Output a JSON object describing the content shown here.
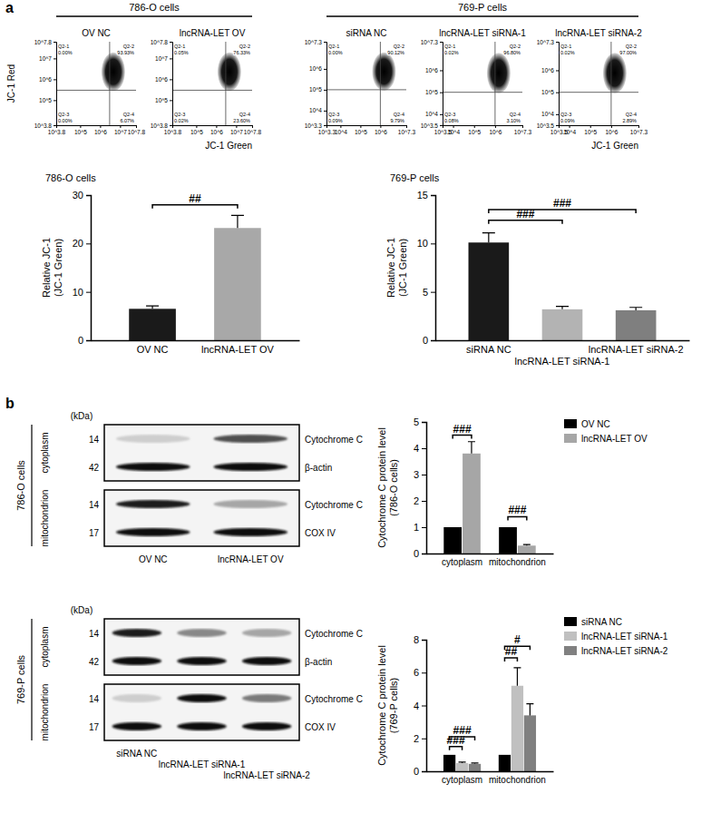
{
  "panel_labels": [
    "a",
    "b"
  ],
  "group_headers": [
    "786-O cells",
    "769-P cells"
  ],
  "chart_data": [
    {
      "type": "scatter",
      "title": "OV NC",
      "y_label": "JC-1 Red",
      "log": true,
      "xlim": [
        6309.573,
        63095734.45
      ],
      "xticks": [
        {
          "value": 6309.573,
          "label": "10^3.8"
        },
        {
          "value": 100000,
          "label": "10^5"
        },
        {
          "value": 1000000,
          "label": "10^6"
        },
        {
          "value": 10000000,
          "label": "10^7"
        },
        {
          "value": 63095734.45,
          "label": "10^7.8"
        }
      ],
      "ylim": [
        6309.573,
        63095734.45
      ],
      "yticks": [
        {
          "value": 6309.573,
          "label": "10^3.8"
        },
        {
          "value": 100000,
          "label": "10^5"
        },
        {
          "value": 1000000,
          "label": "10^6"
        },
        {
          "value": 10000000,
          "label": "10^7"
        },
        {
          "value": 63095734.45,
          "label": "10^7.8"
        }
      ],
      "gate_x": 3000000,
      "gate_y": 300000,
      "quadrants": [
        {
          "name": "Q2-1",
          "value": 0.0,
          "label": "0.00%"
        },
        {
          "name": "Q2-2",
          "value": 93.93,
          "label": "93.93%"
        },
        {
          "name": "Q2-3",
          "value": 0.0,
          "label": "0.00%"
        },
        {
          "name": "Q2-4",
          "value": 6.07,
          "label": "6.07%"
        }
      ]
    },
    {
      "type": "scatter",
      "title": "lncRNA-LET OV",
      "x_label": "JC-1 Green",
      "log": true,
      "xlim": [
        6309.573,
        63095734.45
      ],
      "xticks": [
        {
          "value": 6309.573,
          "label": "10^3.8"
        },
        {
          "value": 100000,
          "label": "10^5"
        },
        {
          "value": 1000000,
          "label": "10^6"
        },
        {
          "value": 10000000,
          "label": "10^7"
        },
        {
          "value": 63095734.45,
          "label": "10^7.8"
        }
      ],
      "ylim": [
        6309.573,
        63095734.45
      ],
      "yticks": [
        {
          "value": 6309.573,
          "label": "10^3.8"
        },
        {
          "value": 100000,
          "label": "10^5"
        },
        {
          "value": 1000000,
          "label": "10^6"
        },
        {
          "value": 10000000,
          "label": "10^7"
        },
        {
          "value": 63095734.45,
          "label": "10^7.8"
        }
      ],
      "gate_x": 3000000,
      "gate_y": 300000,
      "quadrants": [
        {
          "name": "Q2-1",
          "value": 0.05,
          "label": "0.05%"
        },
        {
          "name": "Q2-2",
          "value": 76.33,
          "label": "76.33%"
        },
        {
          "name": "Q2-3",
          "value": 0.02,
          "label": "0.02%"
        },
        {
          "name": "Q2-4",
          "value": 23.6,
          "label": "23.60%"
        }
      ]
    },
    {
      "type": "scatter",
      "title": "siRNA NC",
      "log": true,
      "xlim": [
        1995.262,
        19952623.15
      ],
      "xticks": [
        {
          "value": 1995.262,
          "label": "10^3.3"
        },
        {
          "value": 10000,
          "label": "10^4"
        },
        {
          "value": 100000,
          "label": "10^5"
        },
        {
          "value": 1000000,
          "label": "10^6"
        },
        {
          "value": 19952623.15,
          "label": "10^7.3"
        }
      ],
      "ylim": [
        1995.262,
        19952623.15
      ],
      "yticks": [
        {
          "value": 1995.262,
          "label": "10^3.3"
        },
        {
          "value": 10000,
          "label": "10^4"
        },
        {
          "value": 100000,
          "label": "10^5"
        },
        {
          "value": 1000000,
          "label": "10^6"
        },
        {
          "value": 19952623.15,
          "label": "10^7.3"
        }
      ],
      "gate_x": 1000000,
      "gate_y": 100000,
      "quadrants": [
        {
          "name": "Q2-1",
          "value": 0.0,
          "label": "0.00%"
        },
        {
          "name": "Q2-2",
          "value": 90.12,
          "label": "90.12%"
        },
        {
          "name": "Q2-3",
          "value": 0.09,
          "label": "0.09%"
        },
        {
          "name": "Q2-4",
          "value": 9.79,
          "label": "9.79%"
        }
      ]
    },
    {
      "type": "scatter",
      "title": "lncRNA-LET siRNA-1",
      "log": true,
      "xlim": [
        3162.278,
        19952623.15
      ],
      "xticks": [
        {
          "value": 3162.278,
          "label": "10^3.5"
        },
        {
          "value": 10000,
          "label": "10^4"
        },
        {
          "value": 100000,
          "label": "10^5"
        },
        {
          "value": 1000000,
          "label": "10^6"
        },
        {
          "value": 19952623.15,
          "label": "10^7.3"
        }
      ],
      "ylim": [
        3162.278,
        19952623.15
      ],
      "yticks": [
        {
          "value": 3162.278,
          "label": "10^3.5"
        },
        {
          "value": 10000,
          "label": "10^4"
        },
        {
          "value": 100000,
          "label": "10^5"
        },
        {
          "value": 1000000,
          "label": "10^6"
        },
        {
          "value": 19952623.15,
          "label": "10^7.3"
        }
      ],
      "gate_x": 1000000,
      "gate_y": 100000,
      "quadrants": [
        {
          "name": "Q2-1",
          "value": 0.02,
          "label": "0.02%"
        },
        {
          "name": "Q2-2",
          "value": 96.8,
          "label": "96.80%"
        },
        {
          "name": "Q2-3",
          "value": 0.08,
          "label": "0.08%"
        },
        {
          "name": "Q2-4",
          "value": 3.1,
          "label": "3.10%"
        }
      ]
    },
    {
      "type": "scatter",
      "title": "lncRNA-LET siRNA-2",
      "x_label": "JC-1 Green",
      "log": true,
      "xlim": [
        3162.278,
        19952623.15
      ],
      "xticks": [
        {
          "value": 3162.278,
          "label": "10^3.5"
        },
        {
          "value": 10000,
          "label": "10^4"
        },
        {
          "value": 100000,
          "label": "10^5"
        },
        {
          "value": 1000000,
          "label": "10^6"
        },
        {
          "value": 19952623.15,
          "label": "10^7.3"
        }
      ],
      "ylim": [
        3162.278,
        19952623.15
      ],
      "yticks": [
        {
          "value": 3162.278,
          "label": "10^3.5"
        },
        {
          "value": 10000,
          "label": "10^4"
        },
        {
          "value": 100000,
          "label": "10^5"
        },
        {
          "value": 1000000,
          "label": "10^6"
        },
        {
          "value": 19952623.15,
          "label": "10^7.3"
        }
      ],
      "gate_x": 1000000,
      "gate_y": 100000,
      "quadrants": [
        {
          "name": "Q2-1",
          "value": 0.02,
          "label": "0.02%"
        },
        {
          "name": "Q2-2",
          "value": 97.0,
          "label": "97.00%"
        },
        {
          "name": "Q2-3",
          "value": 0.09,
          "label": "0.09%"
        },
        {
          "name": "Q2-4",
          "value": 2.89,
          "label": "2.89%"
        }
      ]
    },
    {
      "type": "bar",
      "title": "786-O cells",
      "y_label": [
        "Relative JC-1",
        "(JC-1 Green)"
      ],
      "categories": [
        "OV NC",
        "lncRNA-LET OV"
      ],
      "values": [
        6.5,
        23.2
      ],
      "errors": [
        0.6,
        2.6
      ],
      "colors": [
        "#1a1a1a",
        "#a8a8a8"
      ],
      "ylim": [
        0,
        30
      ],
      "yticks": [
        0,
        10,
        20,
        30
      ],
      "annotations": [
        {
          "text": "##",
          "from": 0,
          "to": 1,
          "y": 28
        }
      ]
    },
    {
      "type": "bar",
      "title": "769-P cells",
      "y_label": [
        "Relative JC-1",
        "(JC-1 Green)"
      ],
      "categories": [
        "siRNA NC",
        "lncRNA-LET siRNA-1",
        "lncRNA-LET siRNA-2"
      ],
      "values": [
        10.1,
        3.2,
        3.1
      ],
      "errors": [
        1.0,
        0.3,
        0.3
      ],
      "colors": [
        "#1a1a1a",
        "#b3b3b3",
        "#7f7f7f"
      ],
      "ylim": [
        0,
        15
      ],
      "yticks": [
        0,
        5,
        10,
        15
      ],
      "annotations": [
        {
          "text": "###",
          "from": 0,
          "to": 1,
          "y": 12.4
        },
        {
          "text": "###",
          "from": 0,
          "to": 2,
          "y": 13.5
        }
      ]
    },
    {
      "type": "blot",
      "title": "786-O cells",
      "unit_label": "(kDa)",
      "lanes": [
        "OV NC",
        "lncRNA-LET OV"
      ],
      "fractions": [
        {
          "label": "cytoplasm",
          "rows": [
            {
              "protein": "Cytochrome C",
              "kda": 14,
              "intensity": [
                0.3,
                0.75
              ]
            },
            {
              "protein": "β-actin",
              "kda": 42,
              "intensity": [
                0.95,
                0.95
              ]
            }
          ]
        },
        {
          "label": "mitochondrion",
          "rows": [
            {
              "protein": "Cytochrome C",
              "kda": 14,
              "intensity": [
                0.9,
                0.45
              ]
            },
            {
              "protein": "COX IV",
              "kda": 17,
              "intensity": [
                0.95,
                0.95
              ]
            }
          ]
        }
      ]
    },
    {
      "type": "bar",
      "y_label": [
        "Cytochrome C protein level",
        "(786-O cells)"
      ],
      "categories": [
        "cytoplasm",
        "mitochondrion"
      ],
      "series": [
        {
          "name": "OV NC",
          "color": "#000000",
          "values": [
            1,
            1
          ]
        },
        {
          "name": "lncRNA-LET OV",
          "color": "#a6a6a6",
          "values": [
            3.8,
            0.3
          ],
          "errors": [
            0.45,
            0.04
          ]
        }
      ],
      "ylim": [
        0,
        5
      ],
      "yticks": [
        0,
        1,
        2,
        3,
        4,
        5
      ],
      "legend": "top-right",
      "annotations": [
        {
          "text": "###",
          "category": 0,
          "from": 0,
          "to": 1,
          "y": 4.5
        },
        {
          "text": "###",
          "category": 1,
          "from": 0,
          "to": 1,
          "y": 1.4
        }
      ]
    },
    {
      "type": "blot",
      "title": "769-P cells",
      "unit_label": "(kDa)",
      "lanes": [
        "siRNA NC",
        "lncRNA-LET siRNA-1",
        "lncRNA-LET siRNA-2"
      ],
      "fractions": [
        {
          "label": "cytoplasm",
          "rows": [
            {
              "protein": "Cytochrome C",
              "kda": 14,
              "intensity": [
                0.9,
                0.55,
                0.45
              ]
            },
            {
              "protein": "β-actin",
              "kda": 42,
              "intensity": [
                0.95,
                0.95,
                0.95
              ]
            }
          ]
        },
        {
          "label": "mitochondrion",
          "rows": [
            {
              "protein": "Cytochrome C",
              "kda": 14,
              "intensity": [
                0.3,
                0.95,
                0.6
              ]
            },
            {
              "protein": "COX IV",
              "kda": 17,
              "intensity": [
                0.95,
                0.95,
                0.95
              ]
            }
          ]
        }
      ]
    },
    {
      "type": "bar",
      "y_label": [
        "Cytochrome C protein level",
        "(769-P cells)"
      ],
      "categories": [
        "cytoplasm",
        "mitochondrion"
      ],
      "series": [
        {
          "name": "siRNA NC",
          "color": "#000000",
          "values": [
            1,
            1
          ]
        },
        {
          "name": "lncRNA-LET siRNA-1",
          "color": "#c0c0c0",
          "values": [
            0.5,
            5.2
          ],
          "errors": [
            0.06,
            1.1
          ]
        },
        {
          "name": "lncRNA-LET siRNA-2",
          "color": "#808080",
          "values": [
            0.45,
            3.4
          ],
          "errors": [
            0.05,
            0.7
          ]
        }
      ],
      "ylim": [
        0,
        8
      ],
      "yticks": [
        0,
        2,
        4,
        6,
        8
      ],
      "legend": "top-right",
      "annotations": [
        {
          "text": "###",
          "category": 0,
          "from": 0,
          "to": 1,
          "y": 1.5
        },
        {
          "text": "###",
          "category": 0,
          "from": 0,
          "to": 2,
          "y": 2.1
        },
        {
          "text": "##",
          "category": 1,
          "from": 0,
          "to": 1,
          "y": 6.9
        },
        {
          "text": "#",
          "category": 1,
          "from": 0,
          "to": 2,
          "y": 7.6
        }
      ]
    }
  ]
}
